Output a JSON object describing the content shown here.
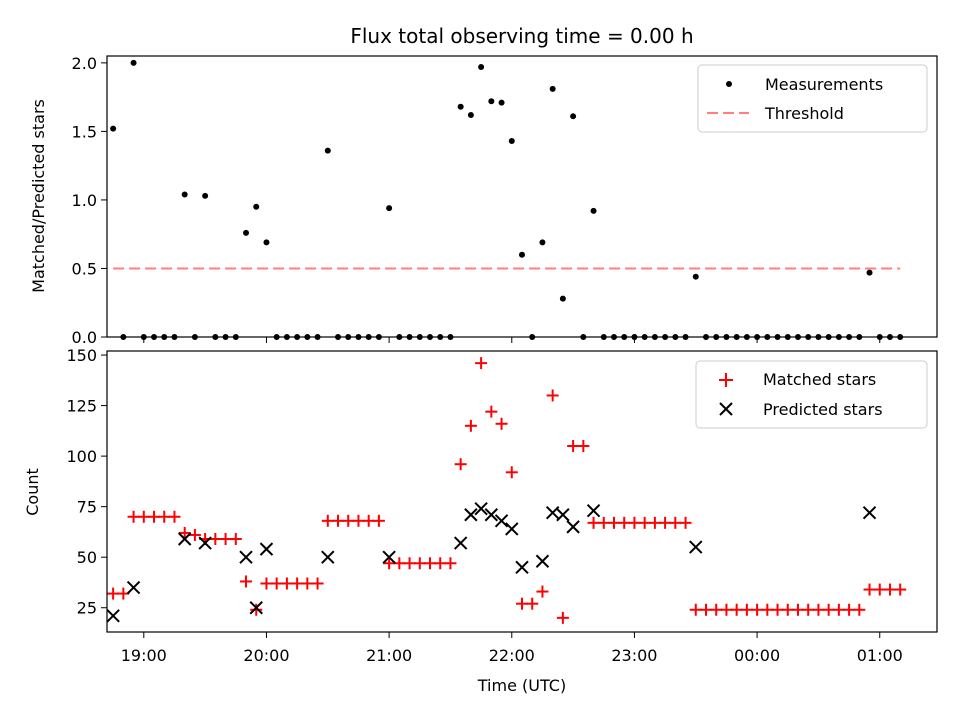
{
  "chart_data": [
    {
      "type": "scatter",
      "title": "Flux total observing time = 0.00 h",
      "xlabel": "",
      "ylabel": "Matched/Predicted stars",
      "xlim": [
        "18:42",
        "01:28"
      ],
      "ylim": [
        0,
        2.05
      ],
      "yticks": [
        "0.0",
        "0.5",
        "1.0",
        "1.5",
        "2.0"
      ],
      "legend": {
        "position": "top-right",
        "entries": [
          "Measurements",
          "Threshold"
        ]
      },
      "threshold": {
        "name": "Threshold",
        "value": 0.5,
        "x_range": [
          "18:45",
          "01:10"
        ],
        "color": "#ff7f7f",
        "style": "dashed"
      },
      "series": [
        {
          "name": "Measurements",
          "marker": "dot",
          "color": "#000000",
          "points": [
            [
              "18:45",
              1.52
            ],
            [
              "18:50",
              0
            ],
            [
              "18:55",
              2.0
            ],
            [
              "19:00",
              0
            ],
            [
              "19:05",
              0
            ],
            [
              "19:10",
              0
            ],
            [
              "19:15",
              0
            ],
            [
              "19:20",
              1.04
            ],
            [
              "19:25",
              0
            ],
            [
              "19:30",
              1.03
            ],
            [
              "19:35",
              0
            ],
            [
              "19:40",
              0
            ],
            [
              "19:45",
              0
            ],
            [
              "19:50",
              0.76
            ],
            [
              "19:55",
              0.95
            ],
            [
              "20:00",
              0.69
            ],
            [
              "20:05",
              0
            ],
            [
              "20:10",
              0
            ],
            [
              "20:15",
              0
            ],
            [
              "20:20",
              0
            ],
            [
              "20:25",
              0
            ],
            [
              "20:30",
              1.36
            ],
            [
              "20:35",
              0
            ],
            [
              "20:40",
              0
            ],
            [
              "20:45",
              0
            ],
            [
              "20:50",
              0
            ],
            [
              "20:55",
              0
            ],
            [
              "21:00",
              0.94
            ],
            [
              "21:05",
              0
            ],
            [
              "21:10",
              0
            ],
            [
              "21:15",
              0
            ],
            [
              "21:20",
              0
            ],
            [
              "21:25",
              0
            ],
            [
              "21:30",
              0
            ],
            [
              "21:35",
              1.68
            ],
            [
              "21:40",
              1.62
            ],
            [
              "21:45",
              1.97
            ],
            [
              "21:50",
              1.72
            ],
            [
              "21:55",
              1.71
            ],
            [
              "22:00",
              1.43
            ],
            [
              "22:05",
              0.6
            ],
            [
              "22:10",
              0
            ],
            [
              "22:15",
              0.69
            ],
            [
              "22:20",
              1.81
            ],
            [
              "22:25",
              0.28
            ],
            [
              "22:30",
              1.61
            ],
            [
              "22:35",
              0
            ],
            [
              "22:40",
              0.92
            ],
            [
              "22:45",
              0
            ],
            [
              "22:50",
              0
            ],
            [
              "22:55",
              0
            ],
            [
              "23:00",
              0
            ],
            [
              "23:05",
              0
            ],
            [
              "23:10",
              0
            ],
            [
              "23:15",
              0
            ],
            [
              "23:20",
              0
            ],
            [
              "23:25",
              0
            ],
            [
              "23:30",
              0.44
            ],
            [
              "23:35",
              0
            ],
            [
              "23:40",
              0
            ],
            [
              "23:45",
              0
            ],
            [
              "23:50",
              0
            ],
            [
              "23:55",
              0
            ],
            [
              "00:00",
              0
            ],
            [
              "00:05",
              0
            ],
            [
              "00:10",
              0
            ],
            [
              "00:15",
              0
            ],
            [
              "00:20",
              0
            ],
            [
              "00:25",
              0
            ],
            [
              "00:30",
              0
            ],
            [
              "00:35",
              0
            ],
            [
              "00:40",
              0
            ],
            [
              "00:45",
              0
            ],
            [
              "00:50",
              0
            ],
            [
              "00:55",
              0.47
            ],
            [
              "01:00",
              0
            ],
            [
              "01:05",
              0
            ],
            [
              "01:10",
              0
            ]
          ]
        }
      ]
    },
    {
      "type": "scatter",
      "title": "",
      "xlabel": "Time (UTC)",
      "ylabel": "Count",
      "xlim": [
        "18:42",
        "01:28"
      ],
      "ylim": [
        13,
        152
      ],
      "yticks": [
        "25",
        "50",
        "75",
        "100",
        "125",
        "150"
      ],
      "xticks": [
        "19:00",
        "20:00",
        "21:00",
        "22:00",
        "23:00",
        "00:00",
        "01:00"
      ],
      "legend": {
        "position": "top-right",
        "entries": [
          "Matched stars",
          "Predicted stars"
        ]
      },
      "series": [
        {
          "name": "Matched stars",
          "marker": "plus",
          "color": "#ff0000",
          "points": [
            [
              "18:45",
              32
            ],
            [
              "18:50",
              32
            ],
            [
              "18:55",
              70
            ],
            [
              "19:00",
              70
            ],
            [
              "19:05",
              70
            ],
            [
              "19:10",
              70
            ],
            [
              "19:15",
              70
            ],
            [
              "19:20",
              62
            ],
            [
              "19:25",
              61
            ],
            [
              "19:30",
              59
            ],
            [
              "19:35",
              59
            ],
            [
              "19:40",
              59
            ],
            [
              "19:45",
              59
            ],
            [
              "19:50",
              38
            ],
            [
              "19:55",
              24
            ],
            [
              "20:00",
              37
            ],
            [
              "20:05",
              37
            ],
            [
              "20:10",
              37
            ],
            [
              "20:15",
              37
            ],
            [
              "20:20",
              37
            ],
            [
              "20:25",
              37
            ],
            [
              "20:30",
              68
            ],
            [
              "20:35",
              68
            ],
            [
              "20:40",
              68
            ],
            [
              "20:45",
              68
            ],
            [
              "20:50",
              68
            ],
            [
              "20:55",
              68
            ],
            [
              "21:00",
              47
            ],
            [
              "21:05",
              47
            ],
            [
              "21:10",
              47
            ],
            [
              "21:15",
              47
            ],
            [
              "21:20",
              47
            ],
            [
              "21:25",
              47
            ],
            [
              "21:30",
              47
            ],
            [
              "21:35",
              96
            ],
            [
              "21:40",
              115
            ],
            [
              "21:45",
              146
            ],
            [
              "21:50",
              122
            ],
            [
              "21:55",
              116
            ],
            [
              "22:00",
              92
            ],
            [
              "22:05",
              27
            ],
            [
              "22:10",
              27
            ],
            [
              "22:15",
              33
            ],
            [
              "22:20",
              130
            ],
            [
              "22:25",
              20
            ],
            [
              "22:30",
              105
            ],
            [
              "22:35",
              105
            ],
            [
              "22:40",
              67
            ],
            [
              "22:45",
              67
            ],
            [
              "22:50",
              67
            ],
            [
              "22:55",
              67
            ],
            [
              "23:00",
              67
            ],
            [
              "23:05",
              67
            ],
            [
              "23:10",
              67
            ],
            [
              "23:15",
              67
            ],
            [
              "23:20",
              67
            ],
            [
              "23:25",
              67
            ],
            [
              "23:30",
              24
            ],
            [
              "23:35",
              24
            ],
            [
              "23:40",
              24
            ],
            [
              "23:45",
              24
            ],
            [
              "23:50",
              24
            ],
            [
              "23:55",
              24
            ],
            [
              "00:00",
              24
            ],
            [
              "00:05",
              24
            ],
            [
              "00:10",
              24
            ],
            [
              "00:15",
              24
            ],
            [
              "00:20",
              24
            ],
            [
              "00:25",
              24
            ],
            [
              "00:30",
              24
            ],
            [
              "00:35",
              24
            ],
            [
              "00:40",
              24
            ],
            [
              "00:45",
              24
            ],
            [
              "00:50",
              24
            ],
            [
              "00:55",
              34
            ],
            [
              "01:00",
              34
            ],
            [
              "01:05",
              34
            ],
            [
              "01:10",
              34
            ]
          ]
        },
        {
          "name": "Predicted stars",
          "marker": "x",
          "color": "#000000",
          "points": [
            [
              "18:45",
              21
            ],
            [
              "18:55",
              35
            ],
            [
              "19:20",
              59
            ],
            [
              "19:30",
              57
            ],
            [
              "19:50",
              50
            ],
            [
              "19:55",
              25
            ],
            [
              "20:00",
              54
            ],
            [
              "20:30",
              50
            ],
            [
              "21:00",
              50
            ],
            [
              "21:35",
              57
            ],
            [
              "21:40",
              71
            ],
            [
              "21:45",
              74
            ],
            [
              "21:50",
              71
            ],
            [
              "21:55",
              68
            ],
            [
              "22:00",
              64
            ],
            [
              "22:05",
              45
            ],
            [
              "22:15",
              48
            ],
            [
              "22:20",
              72
            ],
            [
              "22:25",
              71
            ],
            [
              "22:30",
              65
            ],
            [
              "22:40",
              73
            ],
            [
              "23:30",
              55
            ],
            [
              "00:55",
              72
            ]
          ]
        }
      ]
    }
  ]
}
